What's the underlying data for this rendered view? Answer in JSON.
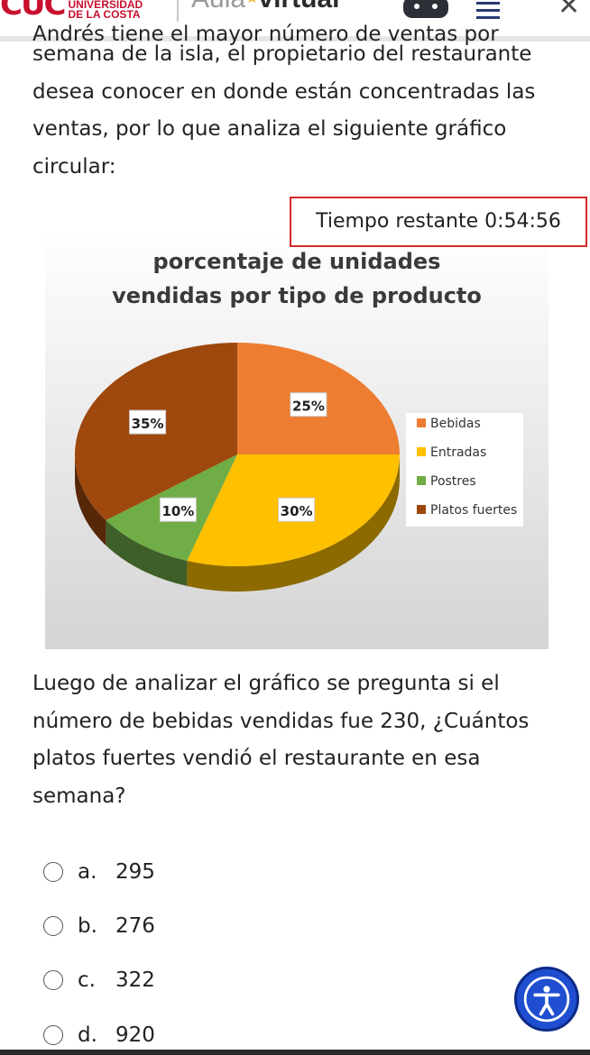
{
  "header": {
    "logo_mark": "CUC",
    "logo_line1": "UNIVERSIDAD",
    "logo_line2": "DE LA COSTA",
    "aula_prefix": "Aula",
    "aula_suffix": "virtual",
    "menu_icon": "hamburger-icon",
    "close_icon": "close-icon",
    "game_icon": "gamepad-icon"
  },
  "intro": {
    "cut_line": "Andrés tiene el mayor número de ventas por",
    "text": "semana de la isla, el propietario del restaurante desea conocer en donde están concentradas las ventas, por lo que analiza el siguiente gráfico circular:"
  },
  "timer": {
    "text": "Tiempo restante 0:54:56"
  },
  "chart_data": {
    "type": "pie",
    "title": "porcentaje de unidades vendidas por tipo de producto",
    "title_line1": "porcentaje de unidades",
    "title_line2": "vendidas por tipo de producto",
    "categories": [
      "Bebidas",
      "Entradas",
      "Postres",
      "Platos fuertes"
    ],
    "values": [
      25,
      30,
      10,
      35
    ],
    "labels": [
      "25%",
      "30%",
      "10%",
      "35%"
    ],
    "colors": [
      "#ed7d31",
      "#ffc000",
      "#70ad47",
      "#9e480e"
    ],
    "legend_position": "right"
  },
  "question": {
    "text": "Luego de analizar el gráfico se pregunta si el número de bebidas vendidas fue 230, ¿Cuántos platos fuertes vendió el restaurante en esa semana?"
  },
  "options": [
    {
      "letter": "a.",
      "value": "295"
    },
    {
      "letter": "b.",
      "value": "276"
    },
    {
      "letter": "c.",
      "value": "322"
    },
    {
      "letter": "d.",
      "value": "920"
    }
  ],
  "accessibility_icon": "accessibility-icon"
}
